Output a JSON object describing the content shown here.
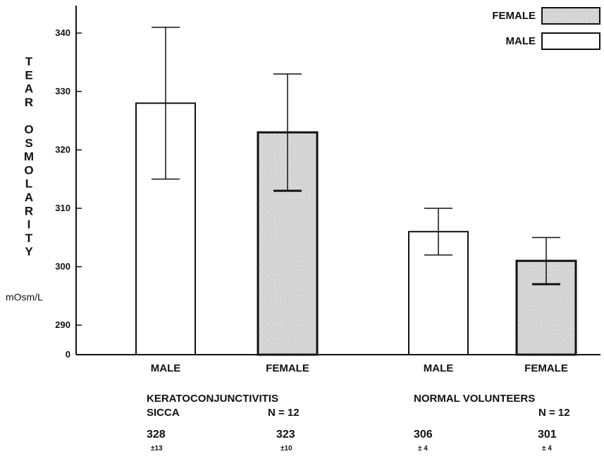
{
  "chart_data": {
    "type": "bar",
    "ylabel_letters": [
      "T",
      "E",
      "A",
      "R",
      "",
      "O",
      "S",
      "M",
      "O",
      "L",
      "A",
      "R",
      "I",
      "T",
      "Y"
    ],
    "yunit": "mOsm/L",
    "yticks": [
      0,
      290,
      300,
      310,
      320,
      330,
      340
    ],
    "ylim": [
      285,
      345
    ],
    "axis_break": true,
    "legend_placement": "top-right",
    "legend": [
      {
        "label": "FEMALE",
        "fill": "#d6d6d6"
      },
      {
        "label": "MALE",
        "fill": "#ffffff"
      }
    ],
    "categories": [
      "MALE",
      "FEMALE",
      "MALE",
      "FEMALE"
    ],
    "bars": [
      {
        "category": "MALE",
        "series": "MALE",
        "value": 328,
        "err_low": 315,
        "err_high": 341
      },
      {
        "category": "FEMALE",
        "series": "FEMALE",
        "value": 323,
        "err_low": 313,
        "err_high": 333
      },
      {
        "category": "MALE",
        "series": "MALE",
        "value": 306,
        "err_low": 302,
        "err_high": 310
      },
      {
        "category": "FEMALE",
        "series": "FEMALE",
        "value": 301,
        "err_low": 297,
        "err_high": 305
      }
    ],
    "groups": [
      {
        "name_line1": "KERATOCONJUNCTIVITIS",
        "name_line2": "SICCA",
        "n": "N = 12",
        "stats": [
          {
            "mean": "328",
            "sd": "±13"
          },
          {
            "mean": "323",
            "sd": "±10"
          }
        ]
      },
      {
        "name_line1": "NORMAL  VOLUNTEERS",
        "name_line2": "",
        "n": "N = 12",
        "stats": [
          {
            "mean": "306",
            "sd": "± 4"
          },
          {
            "mean": "301",
            "sd": "± 4"
          }
        ]
      }
    ]
  }
}
